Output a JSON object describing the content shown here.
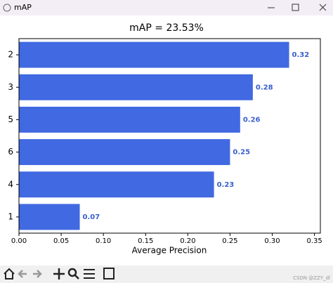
{
  "window": {
    "title": "mAP"
  },
  "chart_data": {
    "type": "barh",
    "title": "mAP = 23.53%",
    "x_label": "Average Precision",
    "categories": [
      "2",
      "3",
      "5",
      "6",
      "4",
      "1"
    ],
    "values": [
      0.32,
      0.277,
      0.262,
      0.25,
      0.231,
      0.072
    ],
    "value_labels": [
      "0.32",
      "0.28",
      "0.26",
      "0.25",
      "0.23",
      "0.07"
    ],
    "color": "#4169e1",
    "label_color": "#3a5fcd",
    "xlim": [
      0,
      0.357
    ],
    "xticks": [
      {
        "value": 0,
        "label": "0.00"
      },
      0.05,
      {
        "value": 0.1,
        "label": "0.10"
      },
      0.15,
      {
        "value": 0.2,
        "label": "0.20"
      },
      0.25,
      {
        "value": 0.3,
        "label": "0.30"
      },
      0.35
    ],
    "grid": false
  },
  "watermark": "CSDN @ZZY_dl"
}
